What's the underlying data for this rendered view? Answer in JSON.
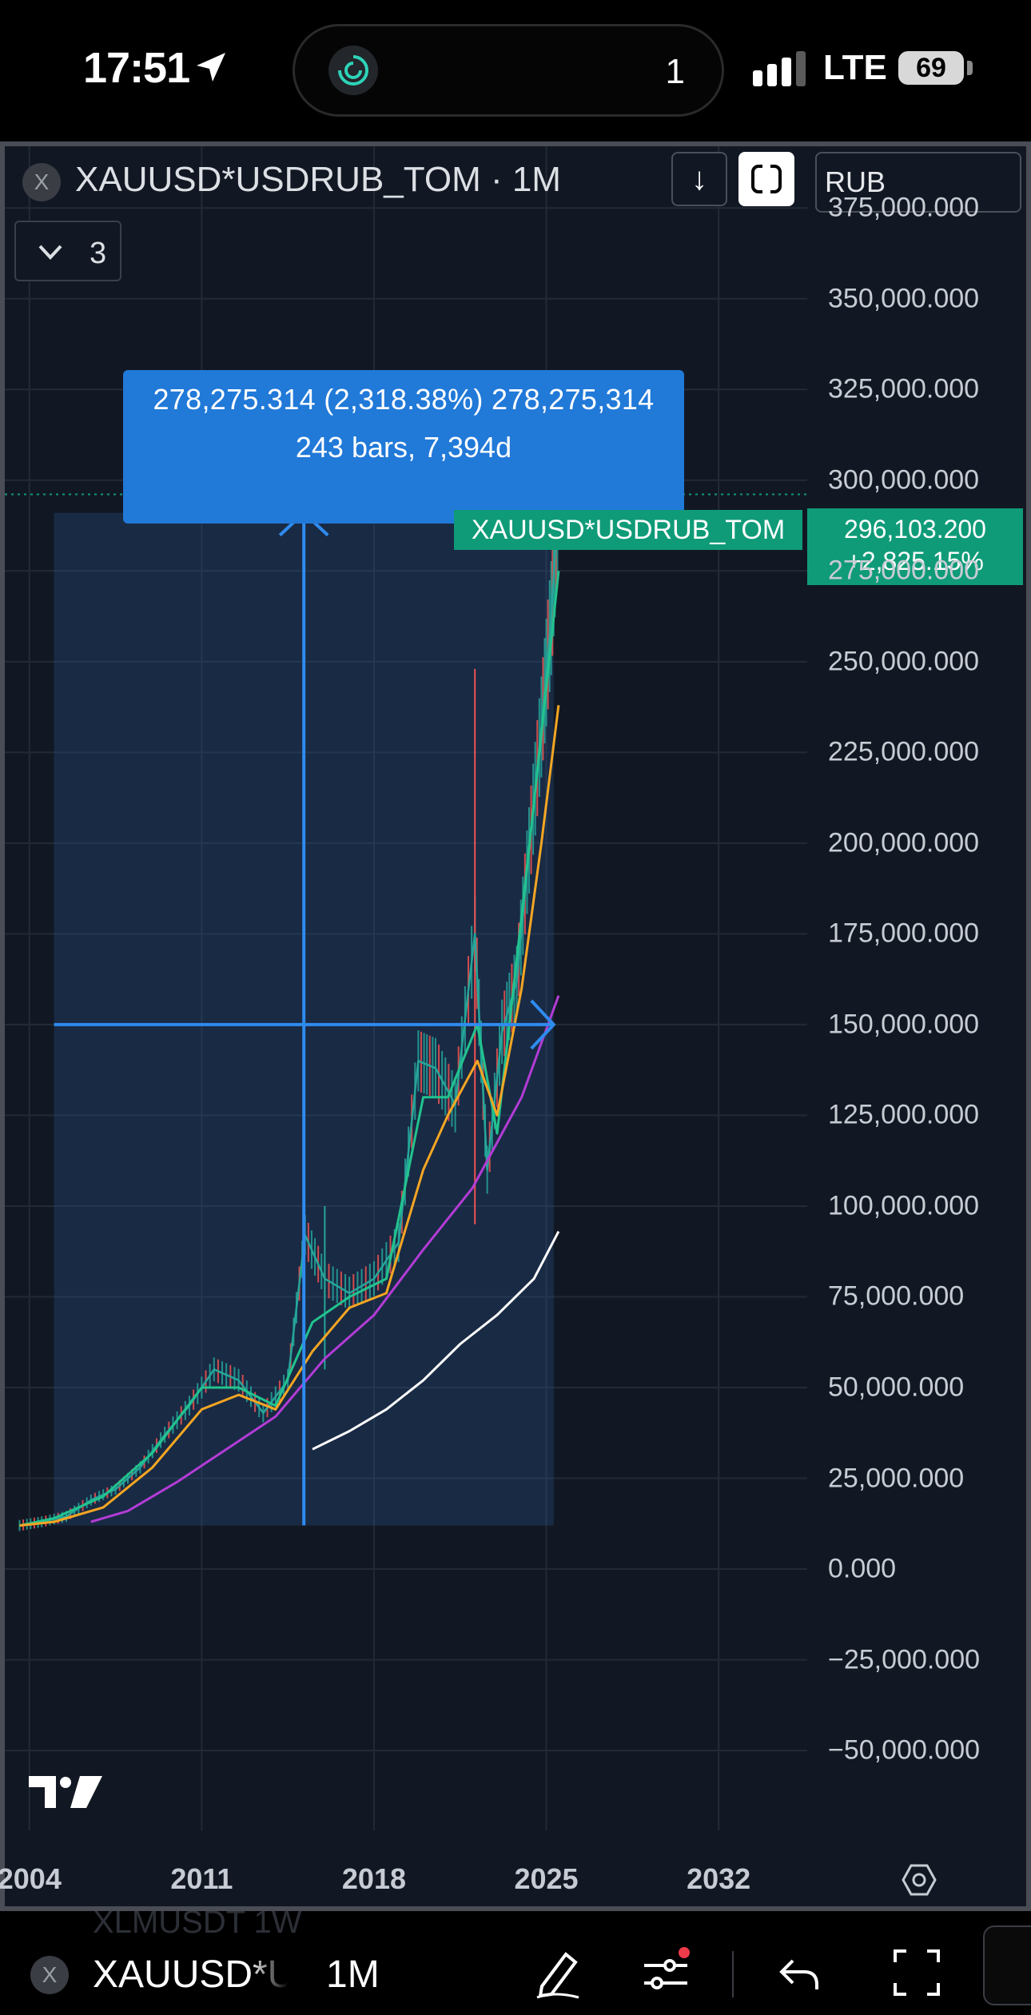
{
  "status_bar": {
    "time": "17:51",
    "island_count": "1",
    "network": "LTE",
    "battery": "69",
    "icons": [
      "location-arrow-icon",
      "app-activity-icon",
      "signal-bars-icon",
      "battery-icon"
    ]
  },
  "toolbar": {
    "close": "X",
    "symbol_title": "XAUUSD*USDRUB_TOM · 1M",
    "indicators_count": "3",
    "down_arrow": "↓",
    "currency": "RUB"
  },
  "measure": {
    "line1": "278,275.314 (2,318.38%) 278,275,314",
    "line2": "243 bars, 7,394d"
  },
  "series_label": "XAUUSD*USDRUB_TOM",
  "last_price": {
    "value": "296,103.200",
    "change": "+2,825.15%"
  },
  "bottom_bar": {
    "ghost_text": "XLMUSDT  1W",
    "close": "X",
    "symbol": "XAUUSD*USDRUB_TOM",
    "interval": "1M",
    "icons": [
      "pencil-draw-icon",
      "indicator-sliders-icon",
      "undo-icon",
      "fullscreen-icon"
    ]
  },
  "colors": {
    "background": "#121823",
    "measure_fill": "#2179d8",
    "last_price": "#0f9b78",
    "ma_green": "#22c38e",
    "ma_orange": "#f5a623",
    "ma_purple": "#b23cd6",
    "ma_white": "#ffffff",
    "candle_up": "#26a69a",
    "candle_down": "#ef5350"
  },
  "chart_data": {
    "type": "line",
    "title": "XAUUSD*USDRUB_TOM · 1M",
    "x_ticks": [
      "2004",
      "2011",
      "2018",
      "2025",
      "2032"
    ],
    "x_tick_values": [
      2004,
      2011,
      2018,
      2025,
      2032
    ],
    "y_ticks": [
      "375,000.000",
      "350,000.000",
      "325,000.000",
      "300,000.000",
      "275,000.000",
      "250,000.000",
      "225,000.000",
      "200,000.000",
      "175,000.000",
      "150,000.000",
      "125,000.000",
      "100,000.000",
      "75,000.000",
      "50,000.000",
      "25,000.000",
      "0.000",
      "−25,000.000",
      "−50,000.000"
    ],
    "y_tick_values": [
      375000,
      350000,
      325000,
      300000,
      275000,
      250000,
      225000,
      200000,
      175000,
      150000,
      125000,
      100000,
      75000,
      50000,
      25000,
      0,
      -25000,
      -50000
    ],
    "xlim": [
      2003,
      2035.6
    ],
    "ylim": [
      -72000,
      392000
    ],
    "grid": true,
    "series": [
      {
        "color": "#26a69a",
        "x": [
          2003.6,
          2004.5,
          2005.5,
          2006.5,
          2007.5,
          2008.5,
          2009.5,
          2010.5,
          2011.5,
          2012.5,
          2013.5,
          2014.5,
          2015.2,
          2016,
          2017,
          2018,
          2019,
          2019.8,
          2020.5,
          2021.3,
          2022.1,
          2022.6,
          2023.2,
          2023.8,
          2024.3,
          2024.8,
          2025.2,
          2025.5
        ],
        "y": [
          12000,
          13000,
          14500,
          19000,
          22000,
          28000,
          37000,
          45000,
          55000,
          52000,
          43000,
          52000,
          92000,
          80000,
          76000,
          80000,
          90000,
          140000,
          138000,
          128000,
          175000,
          110000,
          148000,
          162000,
          198000,
          232000,
          262000,
          296103
        ]
      },
      {
        "color": "#22c38e",
        "x": [
          2003.6,
          2005,
          2007,
          2009,
          2011,
          2012.5,
          2014,
          2015.5,
          2017,
          2018.5,
          2020,
          2021,
          2022.2,
          2023,
          2024,
          2024.8,
          2025.5
        ],
        "y": [
          12000,
          14000,
          20000,
          32000,
          50000,
          50000,
          45000,
          68000,
          75000,
          80000,
          130000,
          130000,
          150000,
          120000,
          180000,
          230000,
          275000
        ]
      },
      {
        "color": "#f5a623",
        "x": [
          2003.6,
          2005,
          2007,
          2009,
          2011,
          2012.5,
          2014,
          2015.5,
          2017,
          2018.5,
          2020,
          2021,
          2022.2,
          2023,
          2024,
          2024.8,
          2025.5
        ],
        "y": [
          12000,
          13000,
          17000,
          28000,
          44000,
          48000,
          44000,
          60000,
          72000,
          76000,
          110000,
          125000,
          140000,
          125000,
          160000,
          200000,
          238000
        ]
      },
      {
        "color": "#b23cd6",
        "x": [
          2006.5,
          2008,
          2010,
          2012,
          2014,
          2016,
          2018,
          2020,
          2022,
          2024,
          2025.5
        ],
        "y": [
          13000,
          16000,
          24000,
          33000,
          42000,
          58000,
          70000,
          88000,
          105000,
          130000,
          158000
        ]
      },
      {
        "color": "#ffffff",
        "x": [
          2015.5,
          2017,
          2018.5,
          2020,
          2021.5,
          2023,
          2024.5,
          2025.5
        ],
        "y": [
          33000,
          38000,
          44000,
          52000,
          62000,
          70000,
          80000,
          93000
        ]
      }
    ],
    "measure_range": {
      "x": [
        2005.0,
        2025.3
      ],
      "y": [
        12000,
        291000
      ]
    }
  }
}
